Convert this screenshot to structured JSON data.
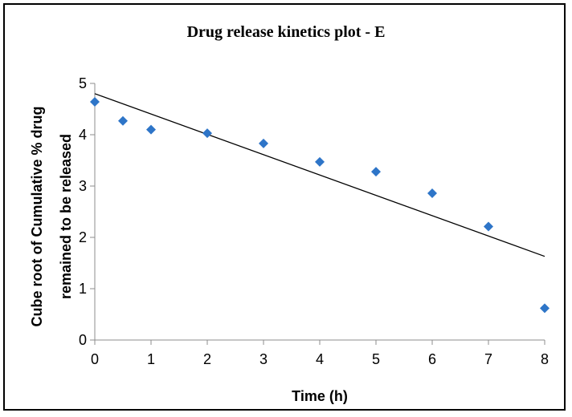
{
  "chart_data": {
    "type": "scatter",
    "title": "Drug release kinetics plot - E",
    "xlabel": "Time (h)",
    "ylabel_line1": "Cube root of Cumulative % drug",
    "ylabel_line2": "remained to be released",
    "xlim": [
      0,
      8
    ],
    "ylim": [
      0,
      5
    ],
    "x_ticks": [
      "0",
      "1",
      "2",
      "3",
      "4",
      "5",
      "6",
      "7",
      "8"
    ],
    "y_ticks": [
      "0",
      "1",
      "2",
      "3",
      "4",
      "5"
    ],
    "grid": false,
    "legend": "none",
    "series": [
      {
        "marker": "diamond",
        "color": "#2e75c8",
        "points": [
          {
            "x": 0,
            "y": 4.64
          },
          {
            "x": 0.5,
            "y": 4.27
          },
          {
            "x": 1,
            "y": 4.1
          },
          {
            "x": 2,
            "y": 4.03
          },
          {
            "x": 3,
            "y": 3.83
          },
          {
            "x": 4,
            "y": 3.47
          },
          {
            "x": 5,
            "y": 3.28
          },
          {
            "x": 6,
            "y": 2.86
          },
          {
            "x": 7,
            "y": 2.21
          },
          {
            "x": 8,
            "y": 0.62
          }
        ]
      }
    ],
    "trendline": {
      "type": "linear",
      "color": "#000000",
      "points": [
        {
          "x": 0,
          "y": 4.8
        },
        {
          "x": 8,
          "y": 1.63
        }
      ]
    }
  }
}
